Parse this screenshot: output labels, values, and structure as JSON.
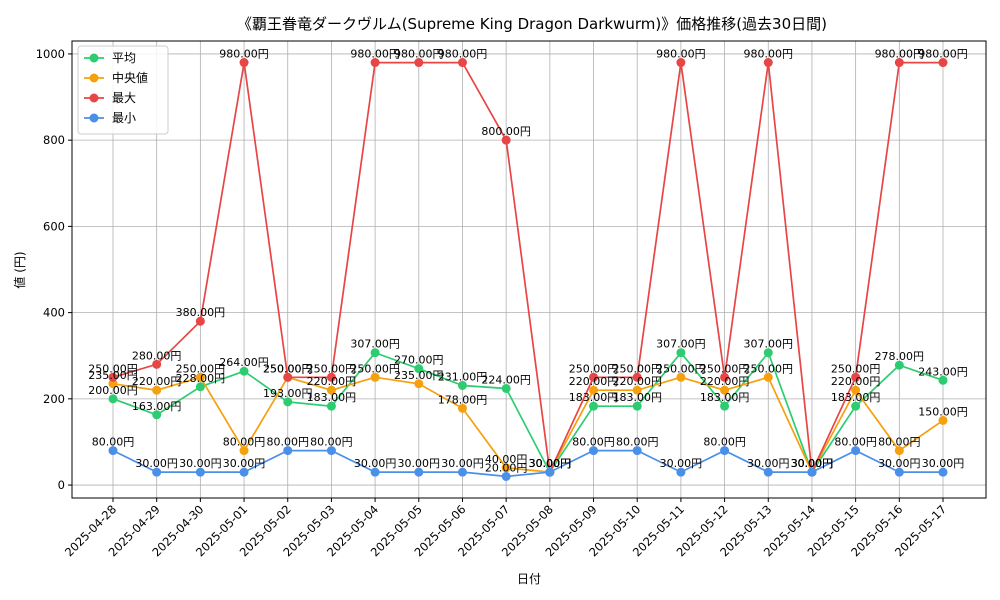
{
  "chart_data": {
    "type": "line",
    "title": "《覇王眷竜ダークヴルム(Supreme King Dragon Darkwurm)》価格推移(過去30日間)",
    "xlabel": "日付",
    "ylabel": "値 (円)",
    "ylim": [
      -30,
      1030
    ],
    "yticks": [
      0,
      200,
      400,
      600,
      800,
      1000
    ],
    "grid": true,
    "legend_position": "top-left",
    "value_suffix": "円",
    "categories": [
      "2025-04-28",
      "2025-04-29",
      "2025-04-30",
      "2025-05-01",
      "2025-05-02",
      "2025-05-03",
      "2025-05-04",
      "2025-05-05",
      "2025-05-06",
      "2025-05-07",
      "2025-05-08",
      "2025-05-09",
      "2025-05-10",
      "2025-05-11",
      "2025-05-12",
      "2025-05-13",
      "2025-05-14",
      "2025-05-15",
      "2025-05-16",
      "2025-05-17"
    ],
    "series": [
      {
        "name": "平均",
        "color": "#2ecc71",
        "values": [
          200,
          163,
          228,
          264,
          193,
          183,
          307,
          270,
          231,
          224,
          30,
          183,
          183,
          307,
          183,
          307,
          30,
          183,
          278,
          243
        ]
      },
      {
        "name": "中央値",
        "color": "#f5a00f",
        "values": [
          235,
          220,
          250,
          80,
          250,
          220,
          250,
          235,
          178,
          40,
          30,
          220,
          220,
          250,
          220,
          250,
          30,
          220,
          80,
          150
        ]
      },
      {
        "name": "最大",
        "color": "#e84545",
        "values": [
          250,
          280,
          380,
          980,
          250,
          250,
          980,
          980,
          980,
          800,
          30,
          250,
          250,
          980,
          250,
          980,
          30,
          250,
          980,
          980
        ]
      },
      {
        "name": "最小",
        "color": "#4a90e8",
        "values": [
          80,
          30,
          30,
          30,
          80,
          80,
          30,
          30,
          30,
          20,
          30,
          80,
          80,
          30,
          80,
          30,
          30,
          80,
          30,
          30
        ]
      }
    ]
  }
}
